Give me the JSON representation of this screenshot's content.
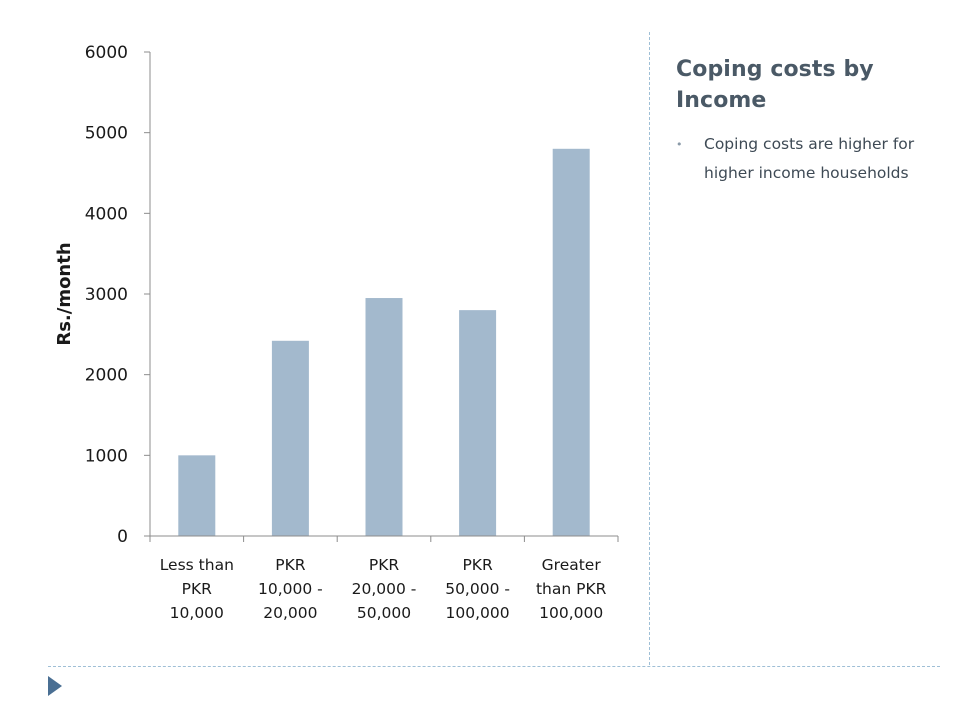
{
  "slide": {
    "title": "Coping costs by Income",
    "bullets": [
      {
        "marker": "•",
        "text": "Coping costs are higher for higher income households"
      }
    ]
  },
  "colors": {
    "bar": "#a3b9cd",
    "axis": "#8c8c8c",
    "accent_divider": "#9fbfd6",
    "triangle": "#4a6f93"
  },
  "chart_data": {
    "type": "bar",
    "title": "",
    "xlabel": "",
    "ylabel": "Rs./month",
    "categories": [
      [
        "Less than",
        "PKR",
        "10,000"
      ],
      [
        "PKR",
        "10,000 -",
        "20,000"
      ],
      [
        "PKR",
        "20,000 -",
        "50,000"
      ],
      [
        "PKR",
        "50,000 -",
        "100,000"
      ],
      [
        "Greater",
        "than PKR",
        "100,000"
      ]
    ],
    "values": [
      1000,
      2420,
      2950,
      2800,
      4800
    ],
    "ylim": [
      0,
      6000
    ],
    "yticks": [
      0,
      1000,
      2000,
      3000,
      4000,
      5000,
      6000
    ],
    "grid": false,
    "legend": "none"
  }
}
